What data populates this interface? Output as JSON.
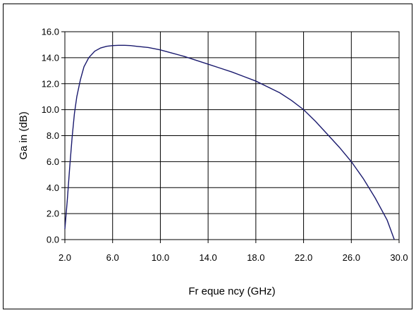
{
  "chart_data": {
    "type": "line",
    "title": "",
    "xlabel": "Fr eque ncy (GHz)",
    "ylabel": "Ga in (dB)",
    "xlim": [
      2.0,
      30.0
    ],
    "ylim": [
      0.0,
      16.0
    ],
    "x_ticks": [
      "2.0",
      "6.0",
      "10.0",
      "14.0",
      "18.0",
      "22.0",
      "26.0",
      "30.0"
    ],
    "y_ticks": [
      "0.0",
      "2.0",
      "4.0",
      "6.0",
      "8.0",
      "10.0",
      "12.0",
      "14.0",
      "16.0"
    ],
    "grid": true,
    "line_color": "#1a1a6e",
    "series": [
      {
        "values": [
          [
            2.0,
            0.8
          ],
          [
            2.2,
            3.0
          ],
          [
            2.4,
            5.5
          ],
          [
            2.6,
            7.8
          ],
          [
            2.8,
            9.7
          ],
          [
            3.0,
            11.0
          ],
          [
            3.3,
            12.3
          ],
          [
            3.6,
            13.3
          ],
          [
            4.0,
            14.0
          ],
          [
            4.5,
            14.5
          ],
          [
            5.0,
            14.75
          ],
          [
            5.5,
            14.88
          ],
          [
            6.0,
            14.93
          ],
          [
            6.5,
            14.95
          ],
          [
            7.0,
            14.95
          ],
          [
            7.5,
            14.93
          ],
          [
            8.0,
            14.88
          ],
          [
            9.0,
            14.78
          ],
          [
            10.0,
            14.6
          ],
          [
            11.0,
            14.35
          ],
          [
            12.0,
            14.1
          ],
          [
            13.0,
            13.8
          ],
          [
            14.0,
            13.5
          ],
          [
            15.0,
            13.2
          ],
          [
            16.0,
            12.9
          ],
          [
            17.0,
            12.55
          ],
          [
            18.0,
            12.2
          ],
          [
            19.0,
            11.75
          ],
          [
            20.0,
            11.3
          ],
          [
            21.0,
            10.7
          ],
          [
            22.0,
            10.0
          ],
          [
            23.0,
            9.1
          ],
          [
            24.0,
            8.1
          ],
          [
            25.0,
            7.1
          ],
          [
            26.0,
            6.0
          ],
          [
            27.0,
            4.7
          ],
          [
            28.0,
            3.2
          ],
          [
            29.0,
            1.5
          ],
          [
            29.6,
            0.0
          ]
        ]
      }
    ]
  }
}
